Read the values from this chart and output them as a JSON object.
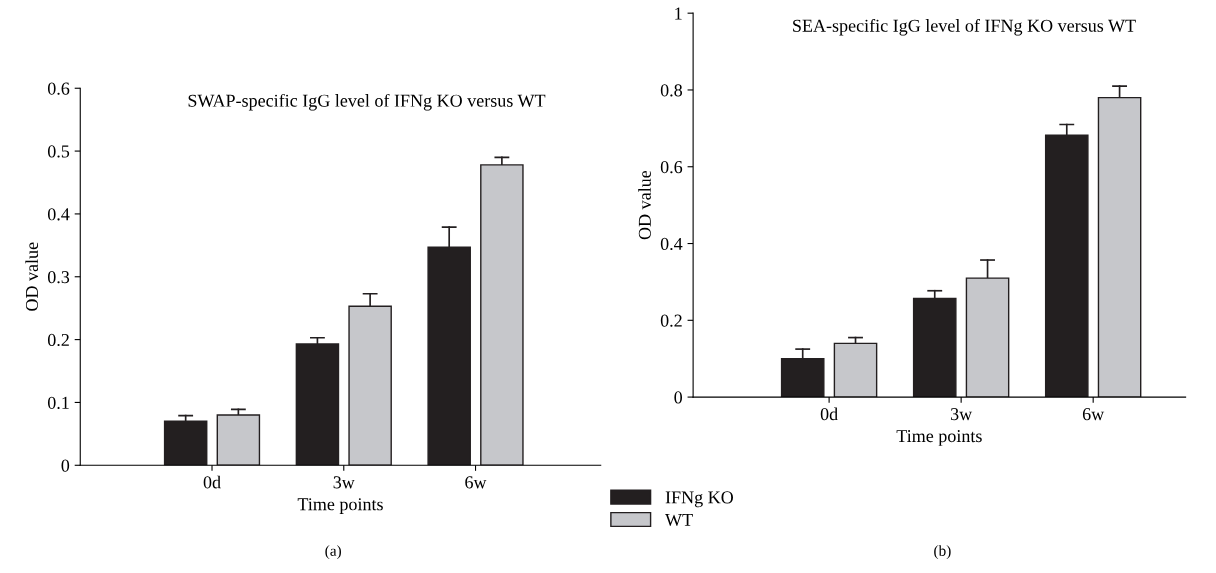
{
  "chart_data": [
    {
      "type": "bar",
      "title": "SWAP-specific IgG level of IFNg KO versus WT",
      "xlabel": "Time points",
      "ylabel": "OD value",
      "annotations": [
        "(a)"
      ],
      "categories": [
        "0d",
        "3w",
        "6w"
      ],
      "series": [
        {
          "color": "#231f20",
          "values": [
            0.07,
            0.193,
            0.347
          ],
          "errors": [
            [
              0.07,
              0.079
            ],
            [
              0.193,
              0.203
            ],
            [
              0.347,
              0.379
            ]
          ]
        },
        {
          "color": "#c6c7cb",
          "values": [
            0.08,
            0.253,
            0.478
          ],
          "errors": [
            [
              0.08,
              0.089
            ],
            [
              0.253,
              0.273
            ],
            [
              0.478,
              0.49
            ]
          ]
        }
      ],
      "ylim": [
        0,
        0.6
      ],
      "yticks": [
        0,
        0.1,
        0.2,
        0.3,
        0.4,
        0.5,
        0.6
      ],
      "grid": false,
      "legend": false
    },
    {
      "type": "bar",
      "title": "SEA-specific IgG level of IFNg KO versus WT",
      "xlabel": "Time points",
      "ylabel": "OD value",
      "annotations": [
        "(b)"
      ],
      "categories": [
        "0d",
        "3w",
        "6w"
      ],
      "series": [
        {
          "name": "IFNg KO",
          "color": "#231f20",
          "values": [
            0.1,
            0.257,
            0.682
          ],
          "errors": [
            [
              0.1,
              0.125
            ],
            [
              0.257,
              0.277
            ],
            [
              0.682,
              0.71
            ]
          ]
        },
        {
          "name": "WT",
          "color": "#c6c7cb",
          "values": [
            0.14,
            0.31,
            0.78
          ],
          "errors": [
            [
              0.14,
              0.155
            ],
            [
              0.31,
              0.357
            ],
            [
              0.78,
              0.81
            ]
          ]
        }
      ],
      "ylim": [
        0,
        1
      ],
      "yticks": [
        0,
        0.2,
        0.4,
        0.6,
        0.8,
        1
      ],
      "grid": false,
      "legend": "bottom left"
    }
  ]
}
